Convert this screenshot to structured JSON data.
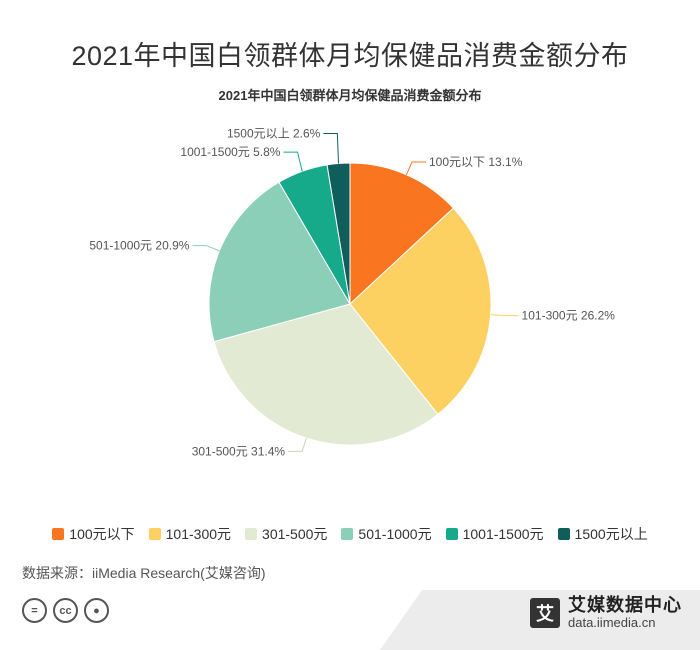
{
  "page_title": "2021年中国白领群体月均保健品消费金额分布",
  "chart_data": {
    "type": "pie",
    "title": "2021年中国白领群体月均保健品消费金额分布",
    "slices": [
      {
        "label": "100元以下",
        "value": 13.1,
        "display": "100元以下 13.1%",
        "color": "#f97520"
      },
      {
        "label": "101-300元",
        "value": 26.2,
        "display": "101-300元 26.2%",
        "color": "#fdd062"
      },
      {
        "label": "301-500元",
        "value": 31.4,
        "display": "301-500元 31.4%",
        "color": "#e2ead3"
      },
      {
        "label": "501-1000元",
        "value": 20.9,
        "display": "501-1000元 20.9%",
        "color": "#8ccfb9"
      },
      {
        "label": "1001-1500元",
        "value": 5.8,
        "display": "1001-1500元 5.8%",
        "color": "#16a98a"
      },
      {
        "label": "1500元以上",
        "value": 2.6,
        "display": "1500元以上 2.6%",
        "color": "#0f5e5c"
      }
    ],
    "legend_position": "bottom"
  },
  "legend": [
    {
      "label": "100元以下"
    },
    {
      "label": "101-300元"
    },
    {
      "label": "301-500元"
    },
    {
      "label": "501-1000元"
    },
    {
      "label": "1001-1500元"
    },
    {
      "label": "1500元以上"
    }
  ],
  "source": "数据来源：iiMedia Research(艾媒咨询)",
  "cc_icons": [
    {
      "icon": "equals-icon",
      "glyph": "="
    },
    {
      "icon": "cc-icon",
      "glyph": "cc"
    },
    {
      "icon": "person-icon",
      "glyph": "●"
    }
  ],
  "brand": {
    "logo_glyph": "艾",
    "name": "艾媒数据中心",
    "url": "data.iimedia.cn"
  }
}
